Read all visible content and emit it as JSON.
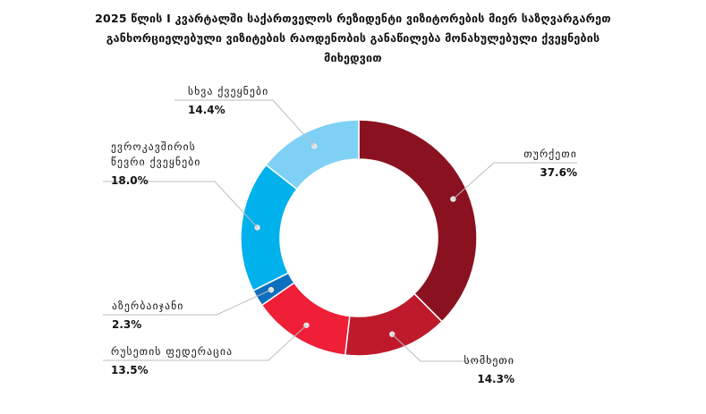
{
  "title_lines": [
    "2025 წლის I  კვარტალში  საქართველოს რეზიდენტი ვიზიტორების მიერ საზღვარგარეთ",
    "განხორციელებული ვიზიტების რაოდენობის განაწილება მონახულებული ქვეყნების",
    "მიხედვით"
  ],
  "chart_data": {
    "type": "pie",
    "donut": true,
    "title": "2025 წლის I  კვარტალში  საქართველოს რეზიდენტი ვიზიტორების მიერ საზღვარგარეთ განხორციელებული ვიზიტების რაოდენობის განაწილება მონახულებული ქვეყნების მიხედვით",
    "slices": [
      {
        "label": [
          "თურქეთი"
        ],
        "value": 37.6,
        "display": "37.6%",
        "color": "#8a1220"
      },
      {
        "label": [
          "სომხეთი"
        ],
        "value": 14.3,
        "display": "14.3%",
        "color": "#be1a2c"
      },
      {
        "label": [
          "რუსეთის ფედერაცია"
        ],
        "value": 13.5,
        "display": "13.5%",
        "color": "#ee1f36"
      },
      {
        "label": [
          "აზერბაიჯანი"
        ],
        "value": 2.3,
        "display": "2.3%",
        "color": "#0f6fbf"
      },
      {
        "label": [
          "ევროკავშირის",
          "წევრი ქვეყნები"
        ],
        "value": 18.0,
        "display": "18.0%",
        "color": "#00b1ec"
      },
      {
        "label": [
          "სხვა ქვეყნები"
        ],
        "value": 14.4,
        "display": "14.4%",
        "color": "#7fd0f5"
      }
    ]
  }
}
